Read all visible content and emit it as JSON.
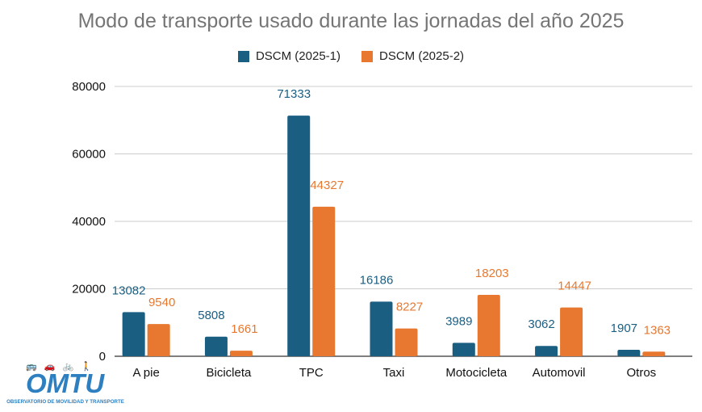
{
  "chart_data": {
    "type": "bar",
    "title": "Modo de transporte usado durante las jornadas del año 2025",
    "categories": [
      "A pie",
      "Bicicleta",
      "TPC",
      "Taxi",
      "Motocicleta",
      "Automovil",
      "Otros"
    ],
    "series": [
      {
        "name": "DSCM (2025-1)",
        "color": "#1a5e82",
        "values": [
          13082,
          5808,
          71333,
          16186,
          3989,
          3062,
          1907
        ],
        "labels": [
          "13082",
          "5808",
          "71333",
          "16186",
          "3989",
          "3062",
          "1907"
        ]
      },
      {
        "name": "DSCM (2025-2)",
        "color": "#e8782f",
        "values": [
          9540,
          1661,
          44327,
          8227,
          18203,
          14447,
          1363
        ],
        "labels": [
          "9540",
          "1661",
          "44327",
          "8227",
          "18203",
          "14447",
          "1363"
        ]
      }
    ],
    "ylim": [
      0,
      80000
    ],
    "yticks": [
      0,
      20000,
      40000,
      60000,
      80000
    ],
    "xlabel": "",
    "ylabel": "",
    "grid": true,
    "legend": "top-center"
  },
  "logo": {
    "name": "OMTU",
    "subtitle": "OBSERVATORIO DE MOVILIDAD Y TRANSPORTE",
    "icons": "🚌 🚗 🚲 🚶"
  }
}
